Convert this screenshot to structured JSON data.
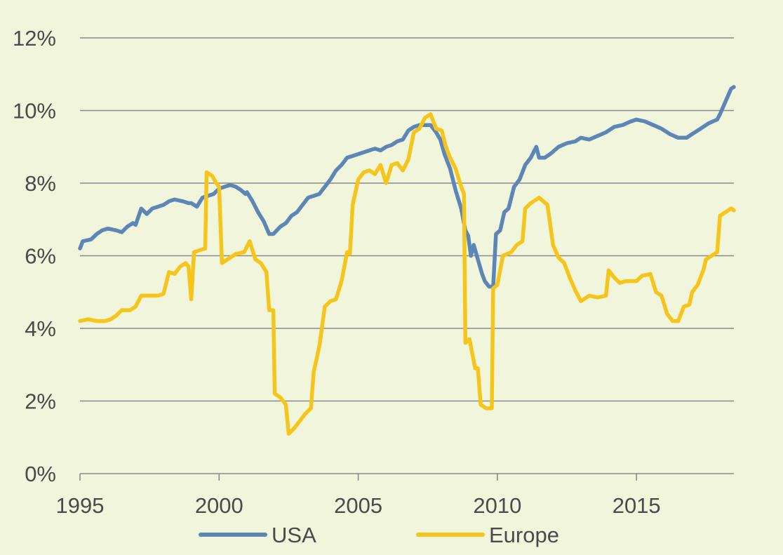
{
  "colors": {
    "background": "#F1F5DC",
    "grid": "#8A8A8A",
    "text": "#4A4A4A"
  },
  "chart_data": {
    "type": "line",
    "title": "",
    "xlabel": "",
    "ylabel": "",
    "xlim": [
      1995,
      2018.5
    ],
    "ylim": [
      0,
      12
    ],
    "x_ticks": [
      1995,
      2000,
      2005,
      2010,
      2015
    ],
    "x_tick_labels": [
      "1995",
      "2000",
      "2005",
      "2010",
      "2015"
    ],
    "y_ticks": [
      0,
      2,
      4,
      6,
      8,
      10,
      12
    ],
    "y_tick_labels": [
      "0%",
      "2%",
      "4%",
      "6%",
      "8%",
      "10%",
      "12%"
    ],
    "grid": "horizontal",
    "legend_position": "bottom",
    "series": [
      {
        "name": "USA",
        "color": "#5B86B6",
        "points": [
          [
            1995.0,
            6.2
          ],
          [
            1995.1,
            6.4
          ],
          [
            1995.4,
            6.45
          ],
          [
            1995.6,
            6.6
          ],
          [
            1995.8,
            6.7
          ],
          [
            1996.0,
            6.75
          ],
          [
            1996.3,
            6.7
          ],
          [
            1996.5,
            6.65
          ],
          [
            1996.7,
            6.8
          ],
          [
            1996.9,
            6.9
          ],
          [
            1997.0,
            6.85
          ],
          [
            1997.2,
            7.3
          ],
          [
            1997.4,
            7.15
          ],
          [
            1997.6,
            7.3
          ],
          [
            1997.8,
            7.35
          ],
          [
            1998.0,
            7.4
          ],
          [
            1998.2,
            7.5
          ],
          [
            1998.4,
            7.55
          ],
          [
            1998.7,
            7.5
          ],
          [
            1998.9,
            7.45
          ],
          [
            1999.0,
            7.45
          ],
          [
            1999.2,
            7.35
          ],
          [
            1999.4,
            7.6
          ],
          [
            1999.6,
            7.65
          ],
          [
            1999.8,
            7.7
          ],
          [
            2000.0,
            7.85
          ],
          [
            2000.2,
            7.9
          ],
          [
            2000.4,
            7.95
          ],
          [
            2000.6,
            7.9
          ],
          [
            2000.8,
            7.8
          ],
          [
            2000.95,
            7.7
          ],
          [
            2001.0,
            7.75
          ],
          [
            2001.2,
            7.5
          ],
          [
            2001.4,
            7.2
          ],
          [
            2001.6,
            6.95
          ],
          [
            2001.8,
            6.6
          ],
          [
            2001.95,
            6.6
          ],
          [
            2002.2,
            6.8
          ],
          [
            2002.4,
            6.9
          ],
          [
            2002.6,
            7.1
          ],
          [
            2002.8,
            7.2
          ],
          [
            2003.0,
            7.4
          ],
          [
            2003.2,
            7.6
          ],
          [
            2003.4,
            7.65
          ],
          [
            2003.6,
            7.7
          ],
          [
            2003.8,
            7.9
          ],
          [
            2004.0,
            8.1
          ],
          [
            2004.2,
            8.35
          ],
          [
            2004.4,
            8.5
          ],
          [
            2004.6,
            8.7
          ],
          [
            2004.8,
            8.75
          ],
          [
            2005.0,
            8.8
          ],
          [
            2005.2,
            8.85
          ],
          [
            2005.4,
            8.9
          ],
          [
            2005.6,
            8.95
          ],
          [
            2005.8,
            8.9
          ],
          [
            2006.0,
            9.0
          ],
          [
            2006.2,
            9.05
          ],
          [
            2006.4,
            9.15
          ],
          [
            2006.6,
            9.2
          ],
          [
            2006.8,
            9.45
          ],
          [
            2007.0,
            9.55
          ],
          [
            2007.2,
            9.6
          ],
          [
            2007.4,
            9.6
          ],
          [
            2007.6,
            9.6
          ],
          [
            2007.8,
            9.4
          ],
          [
            2007.95,
            9.2
          ],
          [
            2008.1,
            8.8
          ],
          [
            2008.3,
            8.4
          ],
          [
            2008.5,
            7.8
          ],
          [
            2008.7,
            7.3
          ],
          [
            2008.85,
            6.7
          ],
          [
            2008.95,
            6.55
          ],
          [
            2009.05,
            6.0
          ],
          [
            2009.15,
            6.3
          ],
          [
            2009.3,
            5.9
          ],
          [
            2009.45,
            5.5
          ],
          [
            2009.55,
            5.3
          ],
          [
            2009.7,
            5.15
          ],
          [
            2009.85,
            5.15
          ],
          [
            2009.95,
            6.6
          ],
          [
            2010.1,
            6.7
          ],
          [
            2010.25,
            7.2
          ],
          [
            2010.4,
            7.3
          ],
          [
            2010.6,
            7.9
          ],
          [
            2010.8,
            8.1
          ],
          [
            2011.0,
            8.5
          ],
          [
            2011.2,
            8.7
          ],
          [
            2011.4,
            9.0
          ],
          [
            2011.5,
            8.7
          ],
          [
            2011.7,
            8.7
          ],
          [
            2011.9,
            8.8
          ],
          [
            2012.2,
            9.0
          ],
          [
            2012.5,
            9.1
          ],
          [
            2012.8,
            9.15
          ],
          [
            2013.0,
            9.25
          ],
          [
            2013.3,
            9.2
          ],
          [
            2013.6,
            9.3
          ],
          [
            2013.9,
            9.4
          ],
          [
            2014.2,
            9.55
          ],
          [
            2014.5,
            9.6
          ],
          [
            2014.8,
            9.7
          ],
          [
            2015.0,
            9.75
          ],
          [
            2015.3,
            9.7
          ],
          [
            2015.6,
            9.6
          ],
          [
            2015.9,
            9.5
          ],
          [
            2016.2,
            9.35
          ],
          [
            2016.5,
            9.25
          ],
          [
            2016.8,
            9.25
          ],
          [
            2017.0,
            9.35
          ],
          [
            2017.3,
            9.5
          ],
          [
            2017.6,
            9.65
          ],
          [
            2017.9,
            9.75
          ],
          [
            2018.0,
            9.9
          ],
          [
            2018.2,
            10.25
          ],
          [
            2018.4,
            10.6
          ],
          [
            2018.5,
            10.65
          ]
        ]
      },
      {
        "name": "Europe",
        "color": "#F6C51C",
        "points": [
          [
            1995.0,
            4.2
          ],
          [
            1995.3,
            4.25
          ],
          [
            1995.6,
            4.2
          ],
          [
            1995.9,
            4.2
          ],
          [
            1996.1,
            4.25
          ],
          [
            1996.3,
            4.35
          ],
          [
            1996.5,
            4.5
          ],
          [
            1996.8,
            4.5
          ],
          [
            1997.0,
            4.6
          ],
          [
            1997.2,
            4.9
          ],
          [
            1997.5,
            4.9
          ],
          [
            1997.8,
            4.9
          ],
          [
            1998.0,
            4.95
          ],
          [
            1998.2,
            5.55
          ],
          [
            1998.4,
            5.5
          ],
          [
            1998.6,
            5.7
          ],
          [
            1998.8,
            5.8
          ],
          [
            1998.9,
            5.7
          ],
          [
            1999.0,
            4.8
          ],
          [
            1999.1,
            6.1
          ],
          [
            1999.3,
            6.15
          ],
          [
            1999.5,
            6.2
          ],
          [
            1999.55,
            8.3
          ],
          [
            1999.75,
            8.2
          ],
          [
            1999.9,
            8.0
          ],
          [
            2000.0,
            7.9
          ],
          [
            2000.1,
            5.8
          ],
          [
            2000.3,
            5.9
          ],
          [
            2000.6,
            6.05
          ],
          [
            2000.9,
            6.1
          ],
          [
            2001.1,
            6.4
          ],
          [
            2001.3,
            5.9
          ],
          [
            2001.5,
            5.8
          ],
          [
            2001.7,
            5.55
          ],
          [
            2001.8,
            4.5
          ],
          [
            2001.95,
            4.5
          ],
          [
            2002.0,
            2.2
          ],
          [
            2002.2,
            2.1
          ],
          [
            2002.4,
            1.9
          ],
          [
            2002.5,
            1.1
          ],
          [
            2002.7,
            1.25
          ],
          [
            2002.9,
            1.45
          ],
          [
            2003.1,
            1.65
          ],
          [
            2003.3,
            1.8
          ],
          [
            2003.4,
            2.8
          ],
          [
            2003.6,
            3.5
          ],
          [
            2003.8,
            4.6
          ],
          [
            2004.0,
            4.75
          ],
          [
            2004.2,
            4.8
          ],
          [
            2004.4,
            5.3
          ],
          [
            2004.6,
            6.1
          ],
          [
            2004.7,
            6.05
          ],
          [
            2004.8,
            7.4
          ],
          [
            2005.0,
            8.1
          ],
          [
            2005.2,
            8.3
          ],
          [
            2005.4,
            8.35
          ],
          [
            2005.6,
            8.25
          ],
          [
            2005.8,
            8.5
          ],
          [
            2006.0,
            8.0
          ],
          [
            2006.2,
            8.5
          ],
          [
            2006.4,
            8.55
          ],
          [
            2006.6,
            8.35
          ],
          [
            2006.8,
            8.65
          ],
          [
            2007.0,
            9.4
          ],
          [
            2007.2,
            9.5
          ],
          [
            2007.4,
            9.8
          ],
          [
            2007.6,
            9.9
          ],
          [
            2007.8,
            9.5
          ],
          [
            2008.0,
            9.45
          ],
          [
            2008.15,
            9.0
          ],
          [
            2008.3,
            8.7
          ],
          [
            2008.5,
            8.4
          ],
          [
            2008.7,
            7.9
          ],
          [
            2008.8,
            7.7
          ],
          [
            2008.85,
            3.6
          ],
          [
            2009.0,
            3.7
          ],
          [
            2009.2,
            2.9
          ],
          [
            2009.3,
            2.9
          ],
          [
            2009.4,
            1.9
          ],
          [
            2009.6,
            1.8
          ],
          [
            2009.8,
            1.8
          ],
          [
            2009.85,
            5.1
          ],
          [
            2010.0,
            5.2
          ],
          [
            2010.2,
            6.0
          ],
          [
            2010.5,
            6.1
          ],
          [
            2010.7,
            6.3
          ],
          [
            2010.9,
            6.4
          ],
          [
            2011.0,
            7.3
          ],
          [
            2011.2,
            7.45
          ],
          [
            2011.5,
            7.6
          ],
          [
            2011.8,
            7.4
          ],
          [
            2012.0,
            6.3
          ],
          [
            2012.2,
            5.95
          ],
          [
            2012.4,
            5.8
          ],
          [
            2012.6,
            5.4
          ],
          [
            2012.8,
            5.05
          ],
          [
            2013.0,
            4.75
          ],
          [
            2013.3,
            4.9
          ],
          [
            2013.6,
            4.85
          ],
          [
            2013.9,
            4.9
          ],
          [
            2014.0,
            5.6
          ],
          [
            2014.2,
            5.4
          ],
          [
            2014.4,
            5.25
          ],
          [
            2014.6,
            5.3
          ],
          [
            2014.8,
            5.3
          ],
          [
            2015.0,
            5.3
          ],
          [
            2015.2,
            5.45
          ],
          [
            2015.5,
            5.5
          ],
          [
            2015.7,
            5.0
          ],
          [
            2015.9,
            4.9
          ],
          [
            2016.1,
            4.4
          ],
          [
            2016.3,
            4.2
          ],
          [
            2016.5,
            4.2
          ],
          [
            2016.7,
            4.6
          ],
          [
            2016.9,
            4.65
          ],
          [
            2017.0,
            5.0
          ],
          [
            2017.2,
            5.2
          ],
          [
            2017.4,
            5.6
          ],
          [
            2017.5,
            5.9
          ],
          [
            2017.7,
            6.0
          ],
          [
            2017.9,
            6.1
          ],
          [
            2018.0,
            7.1
          ],
          [
            2018.2,
            7.2
          ],
          [
            2018.4,
            7.3
          ],
          [
            2018.5,
            7.25
          ]
        ]
      }
    ]
  }
}
